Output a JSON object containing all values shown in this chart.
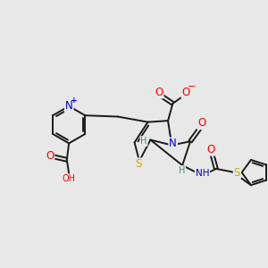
{
  "bg_color": "#e8e8e8",
  "bond_color": "#1a1a1a",
  "bond_width": 1.4,
  "atom_colors": {
    "O": "#ff0000",
    "N": "#0000cc",
    "S": "#ccaa00",
    "H": "#448888",
    "neg": "#ff0000",
    "pos": "#0000cc"
  },
  "fs": 8.5,
  "fs_sm": 7.0
}
